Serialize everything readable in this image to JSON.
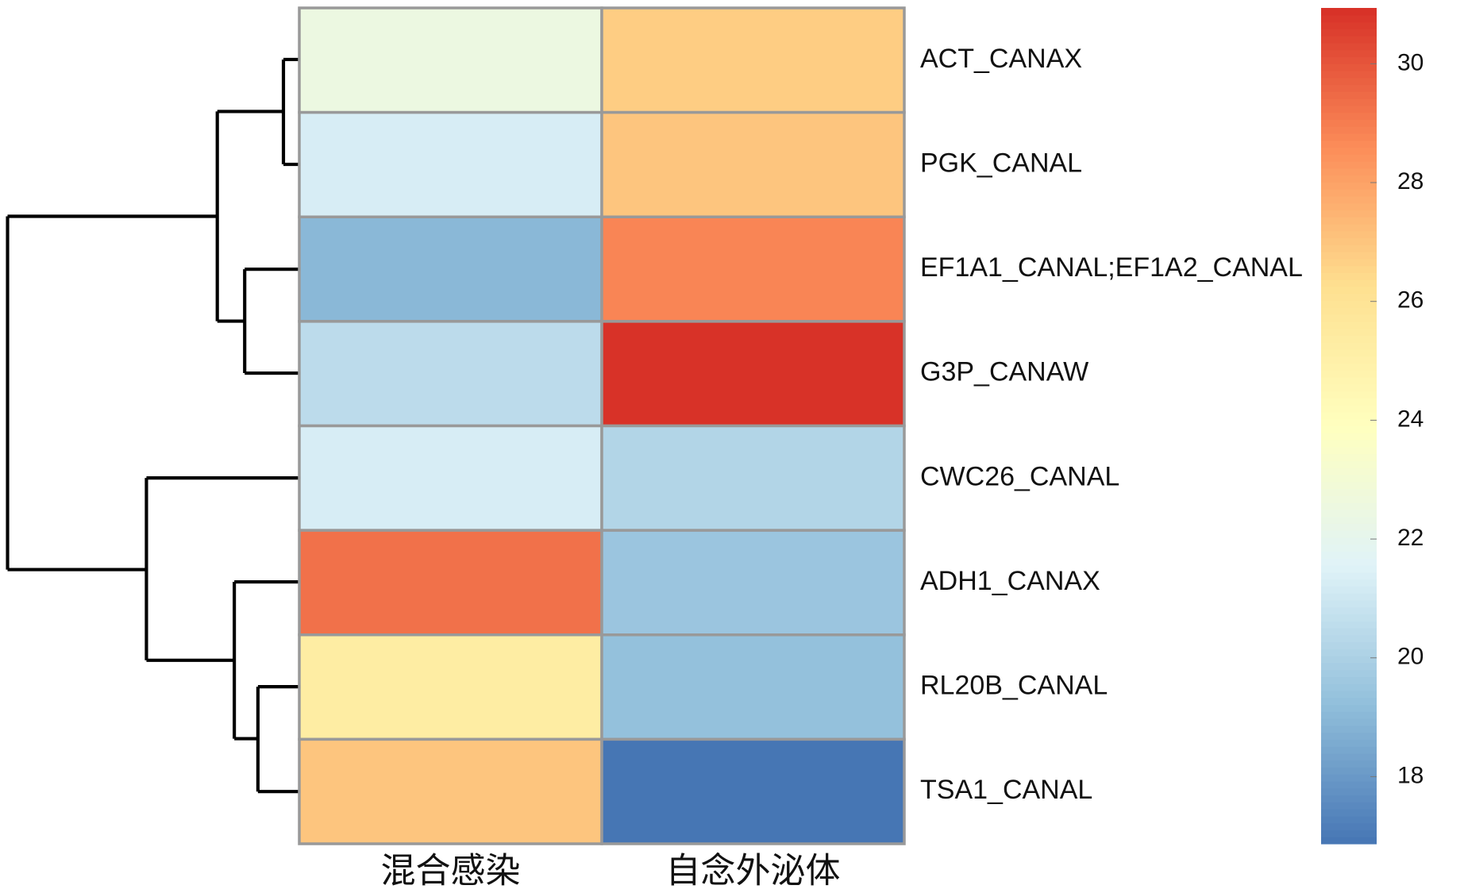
{
  "chart_data": {
    "type": "heatmap",
    "rows": [
      "ACT_CANAX",
      "PGK_CANAL",
      "EF1A1_CANAL;EF1A2_CANAL",
      "G3P_CANAW",
      "CWC26_CANAL",
      "ADH1_CANAX",
      "RL20B_CANAL",
      "TSA1_CANAL"
    ],
    "columns": [
      "混合感染",
      "自念外泌体"
    ],
    "values": [
      [
        22.5,
        26.8
      ],
      [
        21.3,
        27.0
      ],
      [
        19.0,
        28.8
      ],
      [
        20.5,
        30.9
      ],
      [
        21.3,
        20.2
      ],
      [
        29.3,
        19.5
      ],
      [
        25.3,
        19.3
      ],
      [
        27.0,
        16.9
      ]
    ],
    "clim": [
      16.87,
      30.94
    ],
    "cticks": [
      18,
      20,
      22,
      24,
      26,
      28,
      30
    ],
    "colormap": [
      "#4575b4",
      "#91bfdb",
      "#e0f3f8",
      "#ffffbf",
      "#fee090",
      "#fc8d59",
      "#d73027"
    ]
  }
}
